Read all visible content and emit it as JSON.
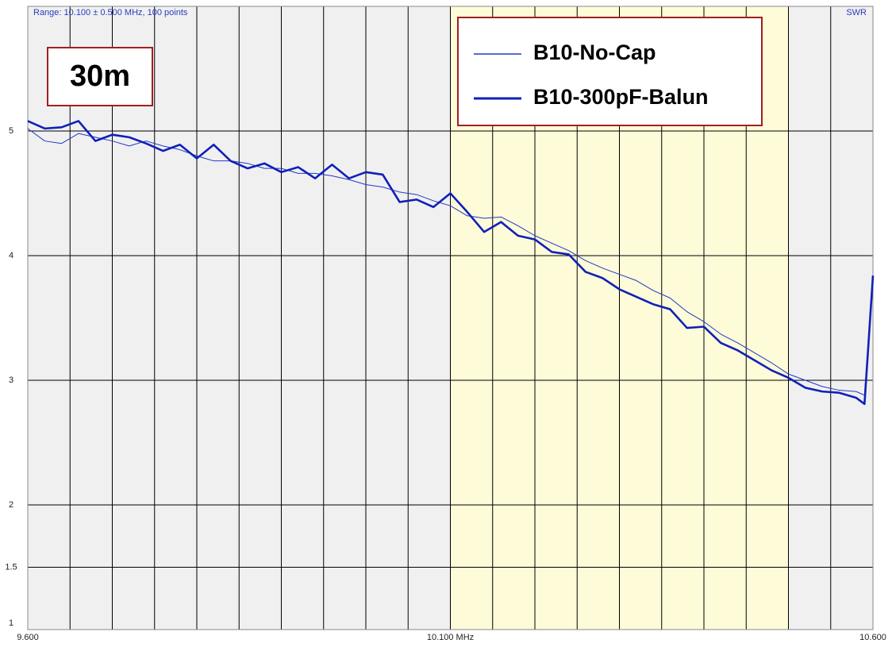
{
  "chart_data": {
    "type": "line",
    "title": "Range: 10.100 ± 0.500 MHz, 100 points",
    "y_label": "SWR",
    "annotation": "30m",
    "x": [
      9.6,
      9.62,
      9.64,
      9.66,
      9.68,
      9.7,
      9.72,
      9.74,
      9.76,
      9.78,
      9.8,
      9.82,
      9.84,
      9.86,
      9.88,
      9.9,
      9.92,
      9.94,
      9.96,
      9.98,
      10.0,
      10.02,
      10.04,
      10.06,
      10.08,
      10.1,
      10.12,
      10.14,
      10.16,
      10.18,
      10.2,
      10.22,
      10.24,
      10.26,
      10.28,
      10.3,
      10.32,
      10.34,
      10.36,
      10.38,
      10.4,
      10.42,
      10.44,
      10.46,
      10.48,
      10.5,
      10.52,
      10.54,
      10.56,
      10.58,
      10.59,
      10.6
    ],
    "series": [
      {
        "name": "B10-No-Cap",
        "color": "#2038c8",
        "width": 1,
        "values": [
          5.02,
          4.92,
          4.9,
          4.98,
          4.95,
          4.92,
          4.88,
          4.92,
          4.88,
          4.85,
          4.8,
          4.76,
          4.76,
          4.74,
          4.7,
          4.7,
          4.66,
          4.66,
          4.64,
          4.61,
          4.57,
          4.55,
          4.51,
          4.49,
          4.44,
          4.4,
          4.32,
          4.3,
          4.31,
          4.24,
          4.16,
          4.1,
          4.04,
          3.96,
          3.9,
          3.85,
          3.8,
          3.72,
          3.66,
          3.55,
          3.47,
          3.37,
          3.3,
          3.22,
          3.14,
          3.05,
          3.0,
          2.95,
          2.92,
          2.91,
          2.88,
          3.84
        ]
      },
      {
        "name": "B10-300pF-Balun",
        "color": "#1020b8",
        "width": 2.6,
        "values": [
          5.08,
          5.02,
          5.03,
          5.08,
          4.92,
          4.97,
          4.95,
          4.9,
          4.84,
          4.89,
          4.78,
          4.89,
          4.76,
          4.7,
          4.74,
          4.67,
          4.71,
          4.62,
          4.73,
          4.62,
          4.67,
          4.65,
          4.43,
          4.45,
          4.39,
          4.5,
          4.35,
          4.19,
          4.27,
          4.16,
          4.13,
          4.03,
          4.01,
          3.87,
          3.82,
          3.73,
          3.67,
          3.61,
          3.57,
          3.42,
          3.43,
          3.3,
          3.24,
          3.16,
          3.08,
          3.02,
          2.94,
          2.91,
          2.9,
          2.86,
          2.81,
          3.84
        ]
      }
    ],
    "xlim": [
      9.6,
      10.6
    ],
    "ylim": [
      1,
      6
    ],
    "xticks": [
      {
        "value": 9.6,
        "label": "9.600"
      },
      {
        "value": 10.1,
        "label": "10.100 MHz"
      },
      {
        "value": 10.6,
        "label": "10.600"
      }
    ],
    "yticks": [
      1,
      1.5,
      2,
      3,
      4,
      5
    ],
    "x_grid": [
      9.65,
      9.7,
      9.75,
      9.8,
      9.85,
      9.9,
      9.95,
      10.0,
      10.05,
      10.1,
      10.15,
      10.2,
      10.25,
      10.3,
      10.35,
      10.4,
      10.45,
      10.5,
      10.55
    ],
    "highlight": [
      10.1,
      10.5
    ],
    "highlight_color": "#fdfbd8",
    "grid": true
  }
}
